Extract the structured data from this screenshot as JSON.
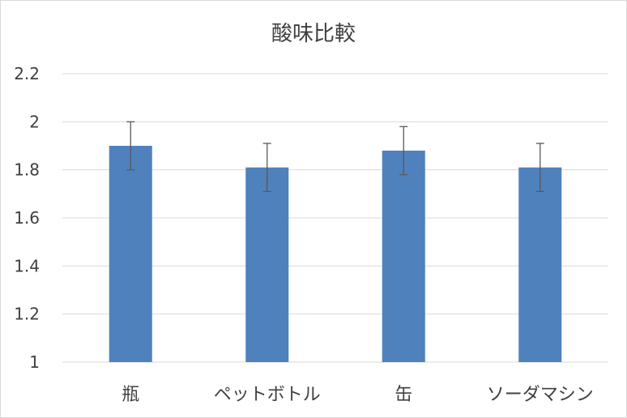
{
  "chart_data": {
    "type": "bar",
    "title": "酸味比較",
    "categories": [
      "瓶",
      "ペットボトル",
      "缶",
      "ソーダマシン"
    ],
    "values": [
      1.9,
      1.81,
      1.88,
      1.81
    ],
    "error_bars": [
      0.1,
      0.1,
      0.1,
      0.1
    ],
    "ylim": [
      1,
      2.2
    ],
    "yticks": [
      "1",
      "1.2",
      "1.4",
      "1.6",
      "1.8",
      "2",
      "2.2"
    ],
    "grid": true,
    "bar_color": "#4F81BD",
    "grid_color": "#D9D9D9",
    "error_color": "#595959"
  }
}
